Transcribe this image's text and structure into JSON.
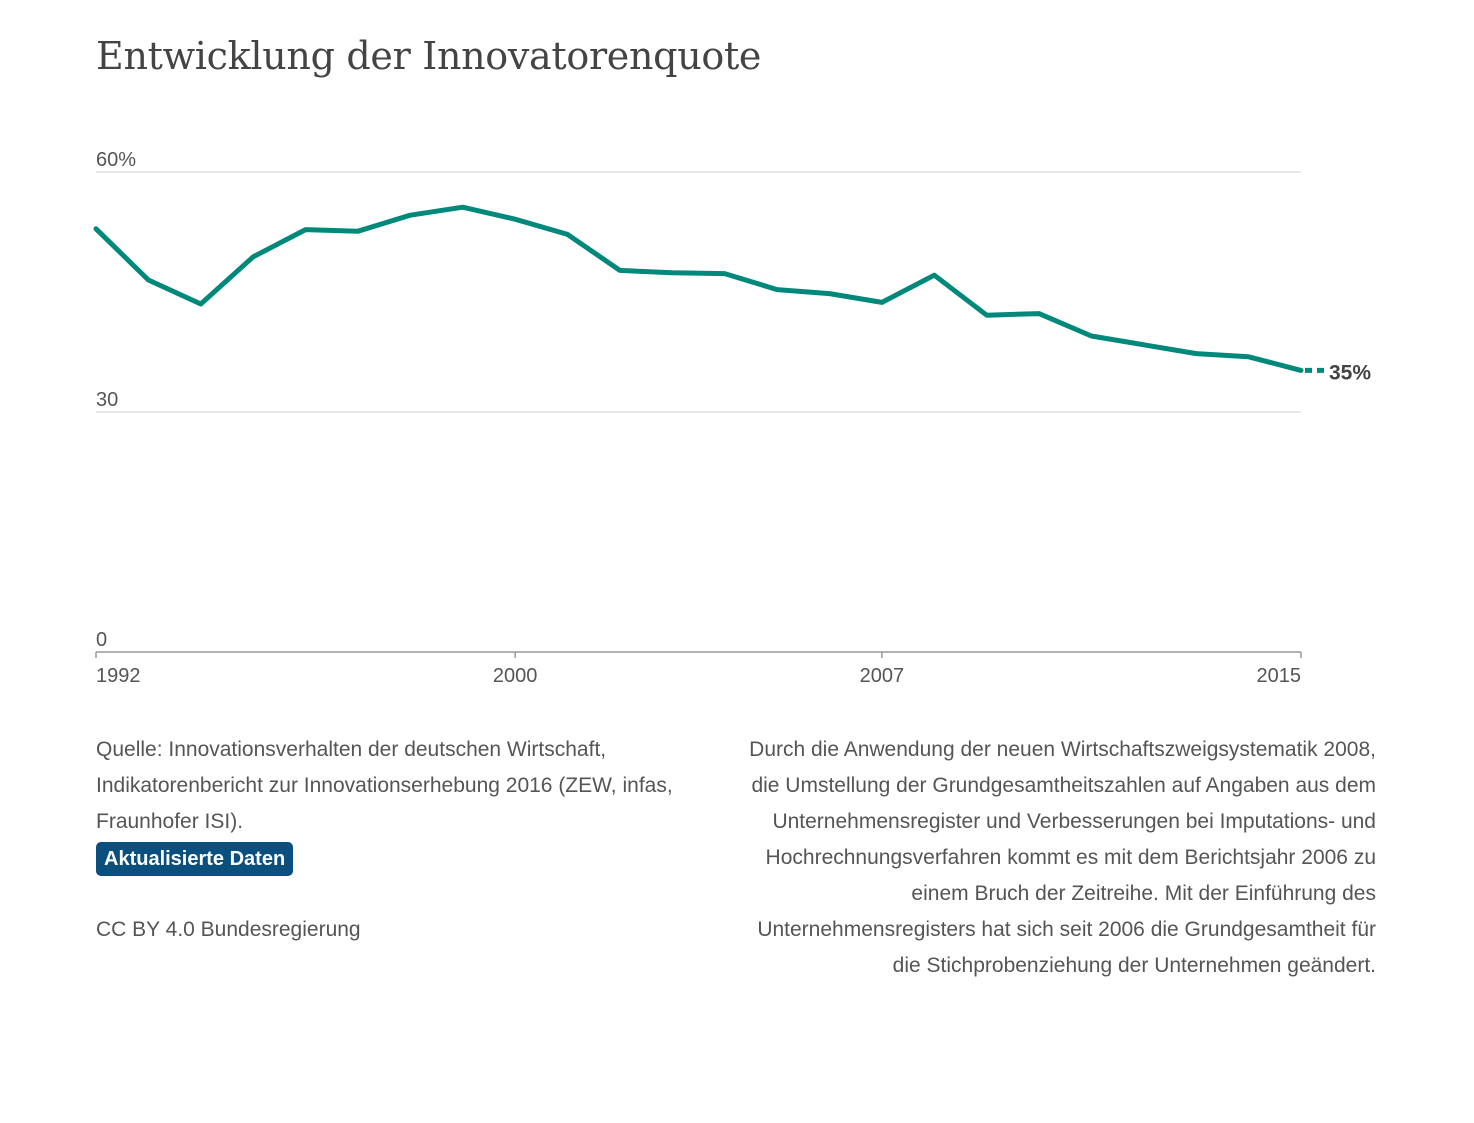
{
  "chart_data": {
    "type": "line",
    "title": "Entwicklung der Innovatorenquote",
    "x": [
      1992,
      1993,
      1994,
      1995,
      1996,
      1997,
      1998,
      1999,
      2000,
      2001,
      2002,
      2003,
      2004,
      2005,
      2006,
      2007,
      2008,
      2009,
      2010,
      2011,
      2012,
      2013,
      2014,
      2015
    ],
    "series": [
      {
        "values": [
          52.9,
          46.5,
          43.5,
          49.4,
          52.8,
          52.6,
          54.6,
          55.6,
          54.1,
          52.2,
          47.7,
          47.4,
          47.3,
          45.3,
          44.8,
          43.7,
          47.1,
          42.1,
          42.3,
          39.5,
          38.4,
          37.3,
          36.9,
          35.2
        ]
      }
    ],
    "xticks": [
      "1992",
      "2000",
      "2007",
      "2015"
    ],
    "yticks": [
      "0",
      "30",
      "60%"
    ],
    "ylim": [
      0,
      60
    ],
    "end_label": "35%",
    "color": "#00897b",
    "grid": true
  },
  "source": {
    "text": "Quelle: Innovationsverhalten der deutschen Wirtschaft, Indikatorenbericht zur Innovationserhebung 2016 (ZEW, infas, Fraunhofer ISI).",
    "badge_label": "Aktualisierte Daten"
  },
  "license": "CC BY 4.0 Bundesregierung",
  "note": "Durch die Anwendung der neuen Wirtschaftszweigsystematik 2008, die Umstellung der Grundgesamtheitszahlen auf Angaben aus dem Unternehmensregister und Verbesserungen bei Imputations- und Hochrechnungsverfahren kommt es mit dem Berichtsjahr 2006 zu einem Bruch der Zeitreihe. Mit der Einführung des Unternehmensregisters hat sich seit 2006 die Grundgesamtheit für die Stichprobenziehung der Unternehmen geändert."
}
